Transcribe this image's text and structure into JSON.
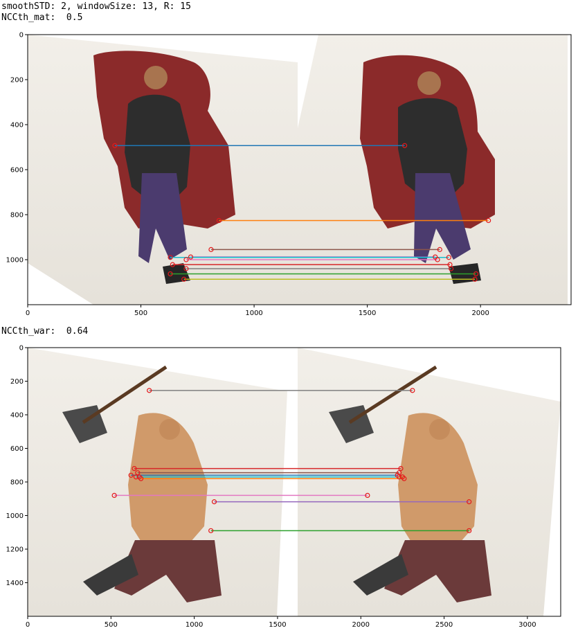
{
  "header": {
    "params": "smoothSTD: 2, windowSize: 13, R: 15",
    "top_label": "NCCth_mat:  0.5",
    "bottom_label": "NCCth_war:  0.64"
  },
  "colors": {
    "tab10": [
      "#1f77b4",
      "#ff7f0e",
      "#2ca02c",
      "#d62728",
      "#9467bd",
      "#8c564b",
      "#e377c2",
      "#7f7f7f",
      "#bcbd22",
      "#17becf"
    ],
    "circle": "#e41a1c"
  },
  "chart_data": [
    {
      "type": "scatter",
      "name": "mat",
      "xlim": [
        0,
        2400
      ],
      "ylim": [
        1200,
        0
      ],
      "xticks": [
        0,
        500,
        1000,
        1500,
        2000
      ],
      "yticks": [
        0,
        200,
        400,
        600,
        800,
        1000
      ],
      "grid": false,
      "legend": "none",
      "matches": [
        {
          "x1": 385,
          "y1": 493,
          "x2": 1665,
          "y2": 493
        },
        {
          "x1": 845,
          "y1": 826,
          "x2": 2035,
          "y2": 826
        },
        {
          "x1": 630,
          "y1": 1063,
          "x2": 1980,
          "y2": 1063
        },
        {
          "x1": 640,
          "y1": 1022,
          "x2": 1865,
          "y2": 1022
        },
        {
          "x1": 720,
          "y1": 988,
          "x2": 1800,
          "y2": 988
        },
        {
          "x1": 810,
          "y1": 955,
          "x2": 1820,
          "y2": 955
        },
        {
          "x1": 700,
          "y1": 1000,
          "x2": 1810,
          "y2": 1000
        },
        {
          "x1": 700,
          "y1": 1040,
          "x2": 1870,
          "y2": 1040
        },
        {
          "x1": 690,
          "y1": 1087,
          "x2": 1975,
          "y2": 1087
        },
        {
          "x1": 630,
          "y1": 990,
          "x2": 1860,
          "y2": 990
        }
      ]
    },
    {
      "type": "scatter",
      "name": "war",
      "xlim": [
        0,
        3200
      ],
      "ylim": [
        1600,
        0
      ],
      "xticks": [
        0,
        500,
        1000,
        1500,
        2000,
        2500,
        3000
      ],
      "yticks": [
        0,
        200,
        400,
        600,
        800,
        1000,
        1200,
        1400
      ],
      "grid": false,
      "legend": "none",
      "matches": [
        {
          "x1": 620,
          "y1": 760,
          "x2": 2220,
          "y2": 760
        },
        {
          "x1": 680,
          "y1": 780,
          "x2": 2260,
          "y2": 780
        },
        {
          "x1": 1100,
          "y1": 1090,
          "x2": 2650,
          "y2": 1090
        },
        {
          "x1": 640,
          "y1": 720,
          "x2": 2240,
          "y2": 720
        },
        {
          "x1": 1120,
          "y1": 918,
          "x2": 2650,
          "y2": 918
        },
        {
          "x1": 660,
          "y1": 745,
          "x2": 2230,
          "y2": 745
        },
        {
          "x1": 520,
          "y1": 880,
          "x2": 2040,
          "y2": 880
        },
        {
          "x1": 730,
          "y1": 255,
          "x2": 2310,
          "y2": 255
        },
        {
          "x1": 670,
          "y1": 770,
          "x2": 2250,
          "y2": 770
        },
        {
          "x1": 650,
          "y1": 770,
          "x2": 2230,
          "y2": 770
        }
      ]
    }
  ]
}
